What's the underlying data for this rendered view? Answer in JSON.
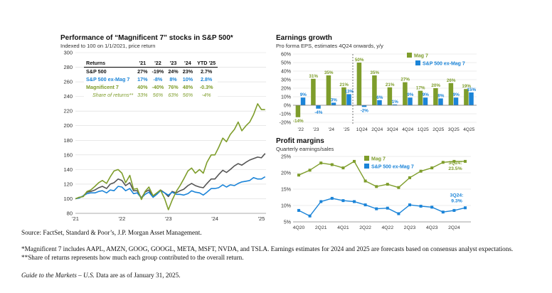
{
  "colors": {
    "sp500": "#555555",
    "sp_ex": "#1b84d8",
    "mag7": "#7e9d2b",
    "grid": "#d9d9d9"
  },
  "left_chart": {
    "title": "Performance of “Magnificent 7” stocks in S&P 500*",
    "subtitle": "Indexed to 100 on 1/1/2021, price return",
    "returns_table": {
      "headers": [
        "Returns",
        "'21",
        "'22",
        "'23",
        "'24",
        "YTD '25"
      ],
      "rows": [
        {
          "label": "S&P 500",
          "values": [
            "27%",
            "-19%",
            "24%",
            "23%",
            "2.7%"
          ]
        },
        {
          "label": "S&P 500 ex-Mag 7",
          "values": [
            "17%",
            "-8%",
            "8%",
            "10%",
            "2.8%"
          ]
        },
        {
          "label": "Magnificent 7",
          "values": [
            "40%",
            "-40%",
            "76%",
            "48%",
            "-0.3%"
          ]
        },
        {
          "label": "Share of returns**",
          "values": [
            "33%",
            "56%",
            "63%",
            "56%",
            "-4%"
          ]
        }
      ]
    }
  },
  "chart_data": [
    {
      "type": "line",
      "title": "Performance of “Magnificent 7” stocks in S&P 500*",
      "subtitle": "Indexed to 100 on 1/1/2021, price return",
      "ylim": [
        80,
        300
      ],
      "yticks": [
        80,
        100,
        120,
        140,
        160,
        180,
        200,
        220,
        240,
        260,
        280,
        300
      ],
      "xlim": [
        2021.0,
        2025.1
      ],
      "xticks": [
        {
          "v": 2021.0,
          "label": "'21"
        },
        {
          "v": 2022.0,
          "label": "'22"
        },
        {
          "v": 2023.0,
          "label": "'23"
        },
        {
          "v": 2024.0,
          "label": "'24"
        },
        {
          "v": 2025.0,
          "label": "'25"
        }
      ],
      "series": [
        {
          "name": "S&P 500",
          "color": "#555555",
          "x": [
            2021.0,
            2021.08,
            2021.17,
            2021.25,
            2021.33,
            2021.42,
            2021.5,
            2021.58,
            2021.67,
            2021.75,
            2021.83,
            2021.92,
            2022.0,
            2022.08,
            2022.17,
            2022.25,
            2022.33,
            2022.42,
            2022.5,
            2022.58,
            2022.67,
            2022.75,
            2022.83,
            2022.92,
            2023.0,
            2023.08,
            2023.17,
            2023.25,
            2023.33,
            2023.42,
            2023.5,
            2023.58,
            2023.67,
            2023.75,
            2023.83,
            2023.92,
            2024.0,
            2024.08,
            2024.17,
            2024.25,
            2024.33,
            2024.42,
            2024.5,
            2024.58,
            2024.67,
            2024.75,
            2024.83,
            2024.92,
            2025.0,
            2025.08
          ],
          "y": [
            100,
            101,
            104,
            109,
            110,
            112,
            115,
            117,
            114,
            120,
            122,
            127,
            125,
            118,
            122,
            111,
            111,
            101,
            109,
            112,
            102,
            107,
            112,
            108,
            103,
            110,
            108,
            111,
            113,
            118,
            121,
            118,
            116,
            115,
            121,
            127,
            127,
            133,
            139,
            136,
            140,
            145,
            148,
            146,
            150,
            153,
            155,
            157,
            156,
            162
          ]
        },
        {
          "name": "S&P 500 ex-Mag 7",
          "color": "#1b84d8",
          "x": [
            2021.0,
            2021.08,
            2021.17,
            2021.25,
            2021.33,
            2021.42,
            2021.5,
            2021.58,
            2021.67,
            2021.75,
            2021.83,
            2021.92,
            2022.0,
            2022.08,
            2022.17,
            2022.25,
            2022.33,
            2022.42,
            2022.5,
            2022.58,
            2022.67,
            2022.75,
            2022.83,
            2022.92,
            2023.0,
            2023.08,
            2023.17,
            2023.25,
            2023.33,
            2023.42,
            2023.5,
            2023.58,
            2023.67,
            2023.75,
            2023.83,
            2023.92,
            2024.0,
            2024.08,
            2024.17,
            2024.25,
            2024.33,
            2024.42,
            2024.5,
            2024.58,
            2024.67,
            2024.75,
            2024.83,
            2024.92,
            2025.0,
            2025.08
          ],
          "y": [
            100,
            101,
            104,
            107,
            108,
            108,
            110,
            111,
            108,
            112,
            111,
            117,
            116,
            111,
            114,
            107,
            108,
            101,
            106,
            109,
            102,
            106,
            111,
            108,
            105,
            109,
            106,
            106,
            105,
            107,
            111,
            109,
            108,
            105,
            109,
            114,
            114,
            115,
            119,
            116,
            119,
            118,
            121,
            123,
            124,
            125,
            129,
            127,
            127,
            130
          ]
        },
        {
          "name": "Magnificent 7",
          "color": "#7e9d2b",
          "x": [
            2021.0,
            2021.08,
            2021.17,
            2021.25,
            2021.33,
            2021.42,
            2021.5,
            2021.58,
            2021.67,
            2021.75,
            2021.83,
            2021.92,
            2022.0,
            2022.08,
            2022.17,
            2022.25,
            2022.33,
            2022.42,
            2022.5,
            2022.58,
            2022.67,
            2022.75,
            2022.83,
            2022.92,
            2023.0,
            2023.08,
            2023.17,
            2023.25,
            2023.33,
            2023.42,
            2023.5,
            2023.58,
            2023.67,
            2023.75,
            2023.83,
            2023.92,
            2024.0,
            2024.08,
            2024.17,
            2024.25,
            2024.33,
            2024.42,
            2024.5,
            2024.58,
            2024.67,
            2024.75,
            2024.83,
            2024.92,
            2025.0,
            2025.08
          ],
          "y": [
            100,
            102,
            103,
            110,
            112,
            117,
            122,
            125,
            121,
            130,
            138,
            140,
            135,
            122,
            132,
            113,
            114,
            99,
            110,
            116,
            104,
            108,
            112,
            100,
            85,
            98,
            110,
            118,
            127,
            138,
            142,
            135,
            140,
            135,
            150,
            160,
            160,
            170,
            183,
            178,
            188,
            195,
            205,
            193,
            200,
            205,
            215,
            230,
            222,
            222
          ]
        }
      ]
    },
    {
      "type": "bar",
      "title": "Earnings growth",
      "subtitle": "Pro forma EPS, estimates 4Q24 onwards, y/y",
      "ylim": [
        -20,
        60
      ],
      "yticks": [
        -20,
        -10,
        0,
        10,
        20,
        30,
        40,
        50,
        60
      ],
      "categories": [
        "'22",
        "'23",
        "'24",
        "'25",
        "1Q24",
        "2Q24",
        "3Q24",
        "4Q24",
        "1Q25",
        "2Q25",
        "3Q25",
        "4Q25"
      ],
      "series": [
        {
          "name": "Mag 7",
          "color": "#7e9d2b",
          "values": [
            -14,
            31,
            35,
            21,
            50,
            35,
            21,
            27,
            17,
            20,
            26,
            19
          ]
        },
        {
          "name": "S&P 500 ex-Mag 7",
          "color": "#1b84d8",
          "values": [
            9,
            -4,
            3,
            13,
            -2,
            6,
            1,
            9,
            9,
            8,
            9,
            15
          ]
        }
      ],
      "data_labels": [
        [
          "-14%",
          "31%",
          "35%",
          "21%",
          "50%",
          "35%",
          "21%",
          "27%",
          "17%",
          "20%",
          "26%",
          "19%"
        ],
        [
          "9%",
          "-4%",
          "3%",
          "13%",
          "-2%",
          "6%",
          "1%",
          "9%",
          "9%",
          "8%",
          "9%",
          "15%"
        ]
      ]
    },
    {
      "type": "line",
      "title": "Profit margins",
      "subtitle": "Quarterly earnings/sales",
      "ylim": [
        5,
        25
      ],
      "yticks": [
        5,
        10,
        15,
        20,
        25
      ],
      "categories": [
        "4Q20",
        "1Q21",
        "2Q21",
        "3Q21",
        "4Q21",
        "1Q22",
        "2Q22",
        "3Q22",
        "4Q22",
        "1Q23",
        "2Q23",
        "3Q23",
        "4Q23",
        "1Q24",
        "2Q24",
        "3Q24"
      ],
      "xtick_labels": [
        "4Q20",
        "2Q21",
        "4Q21",
        "2Q22",
        "4Q22",
        "2Q23",
        "4Q23",
        "2Q24"
      ],
      "series": [
        {
          "name": "Mag 7",
          "color": "#7e9d2b",
          "values": [
            19.3,
            20.8,
            23.0,
            22.5,
            21.5,
            23.5,
            17.5,
            15.8,
            16.5,
            15.5,
            18.5,
            20.5,
            21.5,
            23.2,
            23.5,
            23.5
          ]
        },
        {
          "name": "S&P 500 ex-Mag 7",
          "color": "#1b84d8",
          "values": [
            8.5,
            6.8,
            11.2,
            12.2,
            11.5,
            11.2,
            10.2,
            9.0,
            9.2,
            7.5,
            10.2,
            9.8,
            9.5,
            8.0,
            8.5,
            9.3
          ]
        }
      ],
      "annotations": [
        {
          "series": "Mag 7",
          "lines": [
            "3Q24:",
            "23.5%"
          ]
        },
        {
          "series": "S&P 500 ex-Mag 7",
          "lines": [
            "3Q24:",
            "9.3%"
          ]
        }
      ]
    }
  ],
  "earnings": {
    "title": "Earnings growth",
    "subtitle": "Pro forma EPS, estimates 4Q24 onwards, y/y",
    "legend": [
      "Mag 7",
      "S&P 500 ex-Mag 7"
    ]
  },
  "margins": {
    "title": "Profit margins",
    "subtitle": "Quarterly earnings/sales",
    "legend": [
      "Mag 7",
      "S&P 500 ex-Mag 7"
    ]
  },
  "footnotes": {
    "source": "Source: FactSet, Standard & Poor’s, J.P. Morgan Asset Management.",
    "note": "*Magnificent 7 includes AAPL, AMZN, GOOG, GOOGL, META, MSFT, NVDA, and TSLA. Earnings estimates for 2024 and 2025 are forecasts based on consensus analyst expectations. **Share of returns represents how much each group contributed to the overall return.",
    "guide": "Guide to the Markets – U.S.",
    "date": "Data are as of January 31, 2025."
  }
}
